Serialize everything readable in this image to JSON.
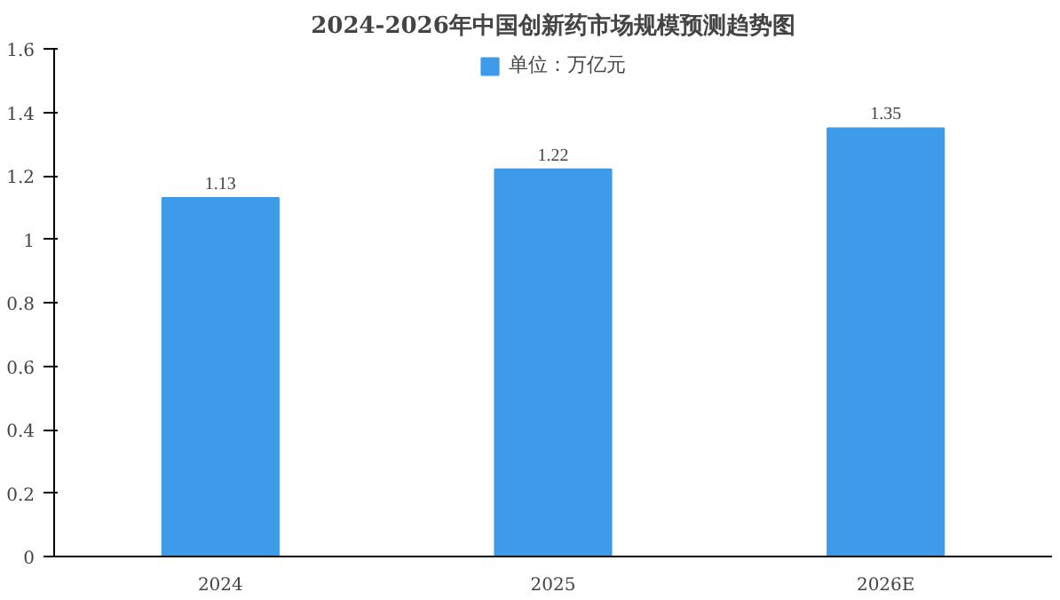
{
  "chart_data": {
    "type": "bar",
    "title": "2024-2026年中国创新药市场规模预测趋势图",
    "categories": [
      "2024",
      "2025",
      "2026E"
    ],
    "series": [
      {
        "name": "单位：万亿元",
        "color": "#3d9be9",
        "values": [
          1.13,
          1.22,
          1.35
        ]
      }
    ],
    "ylim": [
      0,
      1.6
    ],
    "yticks": [
      0,
      0.2,
      0.4,
      0.6,
      0.8,
      1,
      1.2,
      1.4,
      1.6
    ],
    "data_labels": true,
    "legend": "top",
    "grid": false
  }
}
